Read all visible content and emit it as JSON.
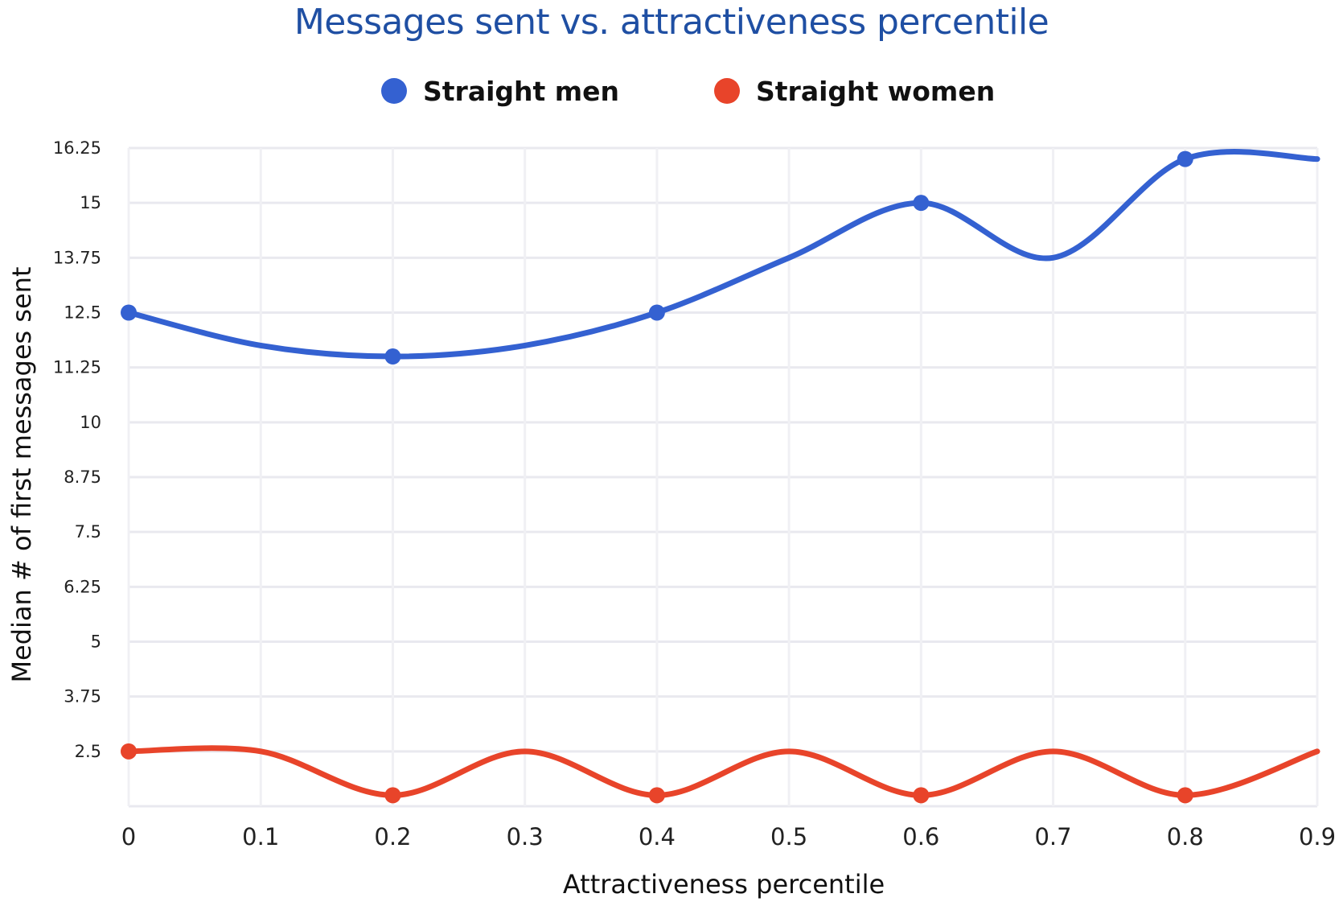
{
  "chart_data": {
    "type": "line",
    "title": "Messages sent vs. attractiveness percentile",
    "xlabel": "Attractiveness percentile",
    "ylabel": "Median # of first messages sent",
    "x": [
      0,
      0.1,
      0.2,
      0.3,
      0.4,
      0.5,
      0.6,
      0.7,
      0.8,
      0.9
    ],
    "x_ticks": [
      "0",
      "0.1",
      "0.2",
      "0.3",
      "0.4",
      "0.5",
      "0.6",
      "0.7",
      "0.8",
      "0.9"
    ],
    "y_ticks": [
      "2.5",
      "3.75",
      "5",
      "6.25",
      "7.5",
      "8.75",
      "10",
      "11.25",
      "12.5",
      "13.75",
      "15",
      "16.25"
    ],
    "xlim": [
      0,
      0.9
    ],
    "ylim": [
      1.25,
      16.25
    ],
    "grid": true,
    "legend_position": "top-center",
    "marker_every": 2,
    "series": [
      {
        "name": "Straight men",
        "color": "#3461d1",
        "values": [
          12.5,
          11.75,
          11.5,
          11.75,
          12.5,
          13.75,
          15,
          13.75,
          16,
          16
        ]
      },
      {
        "name": "Straight women",
        "color": "#e8442a",
        "values": [
          2.5,
          2.5,
          1.5,
          2.5,
          1.5,
          2.5,
          1.5,
          2.5,
          1.5,
          2.5
        ]
      }
    ]
  }
}
